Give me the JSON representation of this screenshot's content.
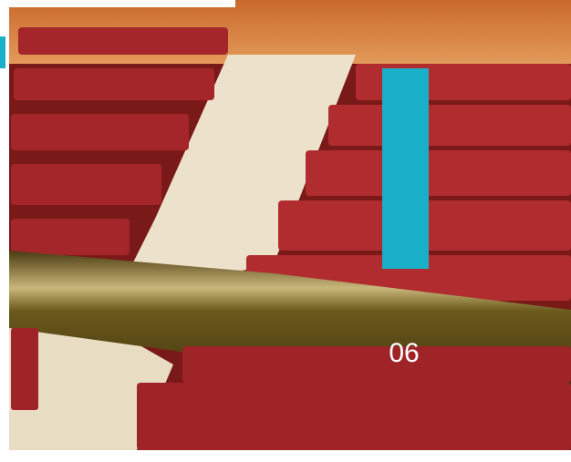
{
  "label": "06"
}
